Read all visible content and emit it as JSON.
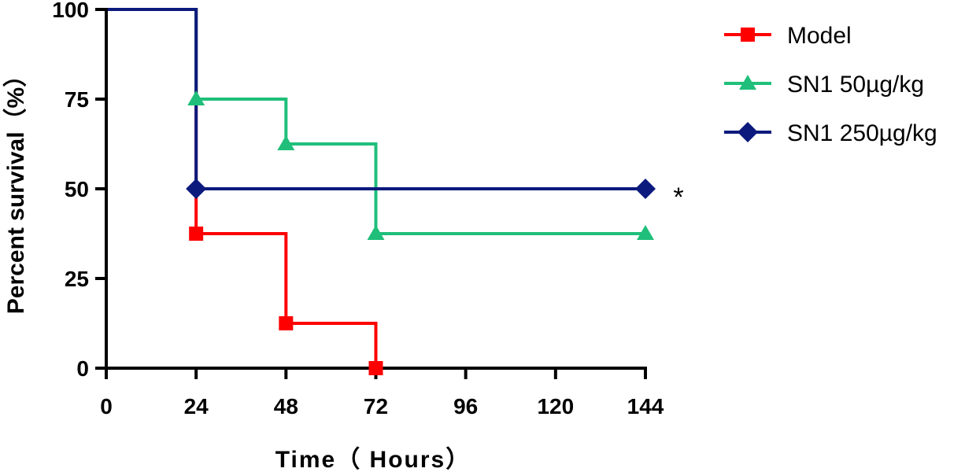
{
  "chart_data": {
    "type": "line",
    "step": true,
    "xlabel": "Time（ Hours）",
    "ylabel": "Percent survival（%）",
    "xlim": [
      0,
      144
    ],
    "ylim": [
      0,
      100
    ],
    "xticks": [
      0,
      24,
      48,
      72,
      96,
      120,
      144
    ],
    "yticks": [
      0,
      25,
      50,
      75,
      100
    ],
    "grid": false,
    "legend_position": "top-right",
    "annotation": "*",
    "series": [
      {
        "name": "Model",
        "color": "#ff0000",
        "marker": "square",
        "x": [
          0,
          24,
          48,
          72
        ],
        "y": [
          100,
          37.5,
          12.5,
          0
        ],
        "markers": [
          [
            24,
            37.5
          ],
          [
            48,
            12.5
          ],
          [
            72,
            0
          ]
        ]
      },
      {
        "name": "SN1 50µg/kg",
        "color": "#1fbf7a",
        "marker": "triangle",
        "x": [
          0,
          24,
          48,
          72,
          144
        ],
        "y": [
          100,
          75,
          62.5,
          37.5,
          37.5
        ],
        "markers": [
          [
            24,
            75
          ],
          [
            48,
            62.5
          ],
          [
            72,
            37.5
          ],
          [
            144,
            37.5
          ]
        ]
      },
      {
        "name": "SN1 250µg/kg",
        "color": "#0c1a7d",
        "marker": "diamond",
        "x": [
          0,
          24,
          144
        ],
        "y": [
          100,
          50,
          50
        ],
        "markers": [
          [
            24,
            50
          ],
          [
            144,
            50
          ]
        ]
      }
    ]
  }
}
